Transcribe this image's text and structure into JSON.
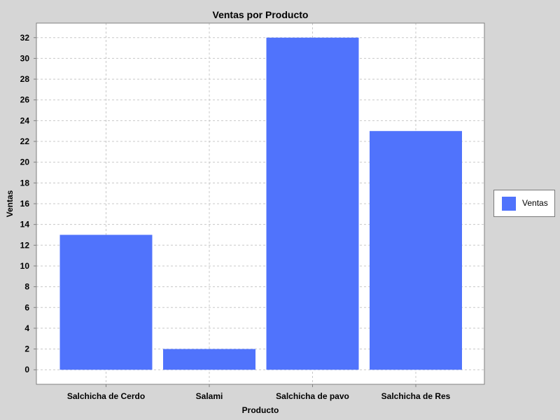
{
  "chart_data": {
    "type": "bar",
    "title": "Ventas por Producto",
    "xlabel": "Producto",
    "ylabel": "Ventas",
    "categories": [
      "Salchicha de Cerdo",
      "Salami",
      "Salchicha de pavo",
      "Salchicha de Res"
    ],
    "series": [
      {
        "name": "Ventas",
        "values": [
          13,
          2,
          32,
          23
        ]
      }
    ],
    "ylim": [
      -1.4,
      33.4
    ],
    "yticks": [
      0,
      2,
      4,
      6,
      8,
      10,
      12,
      14,
      16,
      18,
      20,
      22,
      24,
      26,
      28,
      30,
      32
    ],
    "grid": true,
    "legend_position": "right",
    "colors": {
      "bar": "#5073fc",
      "background": "#d6d6d6",
      "plot": "#ffffff",
      "grid": "#c8c8c8"
    }
  }
}
